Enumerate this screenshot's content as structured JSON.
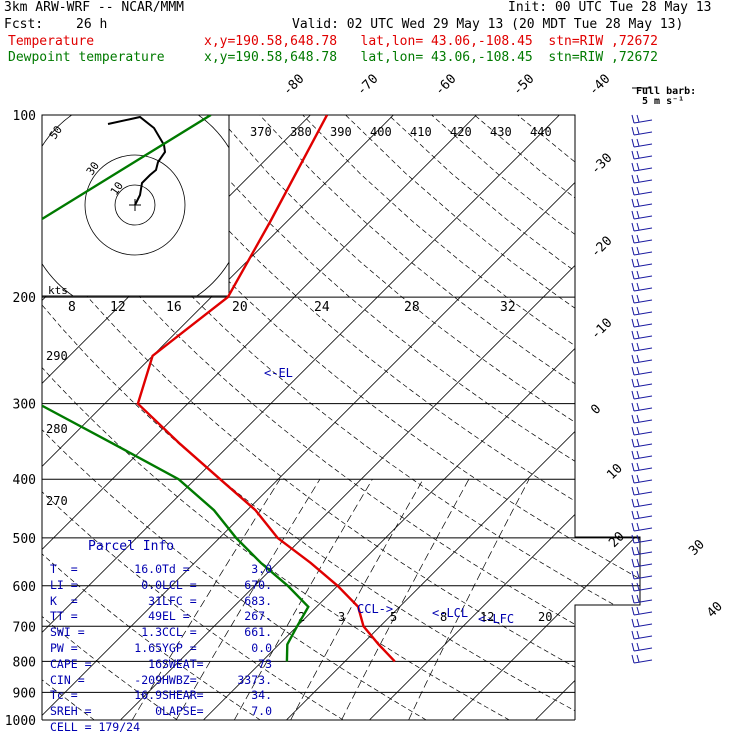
{
  "header": {
    "model": "3km ARW-WRF -- NCAR/MMM",
    "init": "Init: 00 UTC Tue 28 May 13",
    "fcst_label": "Fcst:",
    "fcst_value": "26 h",
    "valid": "Valid: 02 UTC Wed 29 May 13 (20 MDT Tue 28 May 13)",
    "temp_label": "Temperature",
    "temp_info": "x,y=190.58,648.78   lat,lon= 43.06,-108.45  stn=RIW ,72672",
    "dew_label": "Dewpoint temperature",
    "dew_info": "x,y=190.58,648.78   lat,lon= 43.06,-108.45  stn=RIW ,72672"
  },
  "barb_legend": {
    "title": "Full barb:",
    "value": "5 m s⁻¹"
  },
  "colors": {
    "temperature": "#e00000",
    "dewpoint": "#007a00",
    "parcel": "#0000b0",
    "isotherm": "#000000"
  },
  "chart_data": {
    "type": "line",
    "pressure_levels": [
      100,
      200,
      300,
      400,
      500,
      600,
      700,
      800,
      900,
      1000
    ],
    "isotherm_labels": [
      -80,
      -70,
      -60,
      -50,
      -40,
      -30,
      -20,
      -10,
      0,
      10,
      20,
      30,
      40
    ],
    "dry_adiabat_labels": [
      290,
      280,
      270
    ],
    "mixing_ratio_labels": [
      2,
      3,
      5,
      8,
      12,
      20
    ],
    "theta_e_labels": [
      370,
      380,
      390,
      400,
      410,
      420,
      430,
      440
    ],
    "hodograph": {
      "units": "kts",
      "ring_labels": [
        10,
        30,
        50
      ],
      "speed_axis_labels": [
        8,
        12,
        16,
        20,
        24,
        28,
        32
      ]
    },
    "annotations": {
      "el": "<-EL",
      "ccl": "CCL->",
      "lcl": "<-LCL",
      "lfc": "<-LFC"
    },
    "series": [
      {
        "name": "Temperature",
        "points": [
          [
            100,
            -58
          ],
          [
            150,
            -52
          ],
          [
            200,
            -48
          ],
          [
            250,
            -50
          ],
          [
            300,
            -46
          ],
          [
            350,
            -36
          ],
          [
            400,
            -27
          ],
          [
            450,
            -19
          ],
          [
            500,
            -13
          ],
          [
            550,
            -6
          ],
          [
            600,
            0
          ],
          [
            650,
            5
          ],
          [
            700,
            8
          ],
          [
            750,
            12
          ],
          [
            800,
            16
          ]
        ]
      },
      {
        "name": "Dewpoint temperature",
        "points": [
          [
            100,
            -72
          ],
          [
            150,
            -80
          ],
          [
            200,
            -92
          ],
          [
            250,
            -70
          ],
          [
            300,
            -58
          ],
          [
            350,
            -44
          ],
          [
            400,
            -32
          ],
          [
            450,
            -24
          ],
          [
            500,
            -18
          ],
          [
            550,
            -12
          ],
          [
            600,
            -6
          ],
          [
            650,
            -1
          ],
          [
            700,
            0
          ],
          [
            750,
            1
          ],
          [
            800,
            3
          ]
        ]
      }
    ]
  },
  "parcel_info": {
    "title": "Parcel Info",
    "rows": [
      [
        "T  =",
        "16.0",
        "Td =",
        "3.0"
      ],
      [
        "LI =",
        "0.0",
        "LCL =",
        "670."
      ],
      [
        "K  =",
        "31",
        "LFC =",
        "683."
      ],
      [
        "TT =",
        "49",
        "EL =",
        "267."
      ],
      [
        "SWI =",
        "1.3",
        "CCL =",
        "661."
      ],
      [
        "PW =",
        "1.65",
        "YGP =",
        "0.0"
      ],
      [
        "CAPE =",
        "16",
        "SWEAT=",
        "73"
      ],
      [
        "CIN =",
        "-209",
        "HWBZ=",
        "3373."
      ],
      [
        "Tc =",
        "16.9",
        "SHEAR=",
        "34."
      ],
      [
        "SREH =",
        "0",
        "LAPSE=",
        "7.0"
      ],
      [
        "CELL = 179/24",
        "",
        "",
        ""
      ]
    ]
  }
}
